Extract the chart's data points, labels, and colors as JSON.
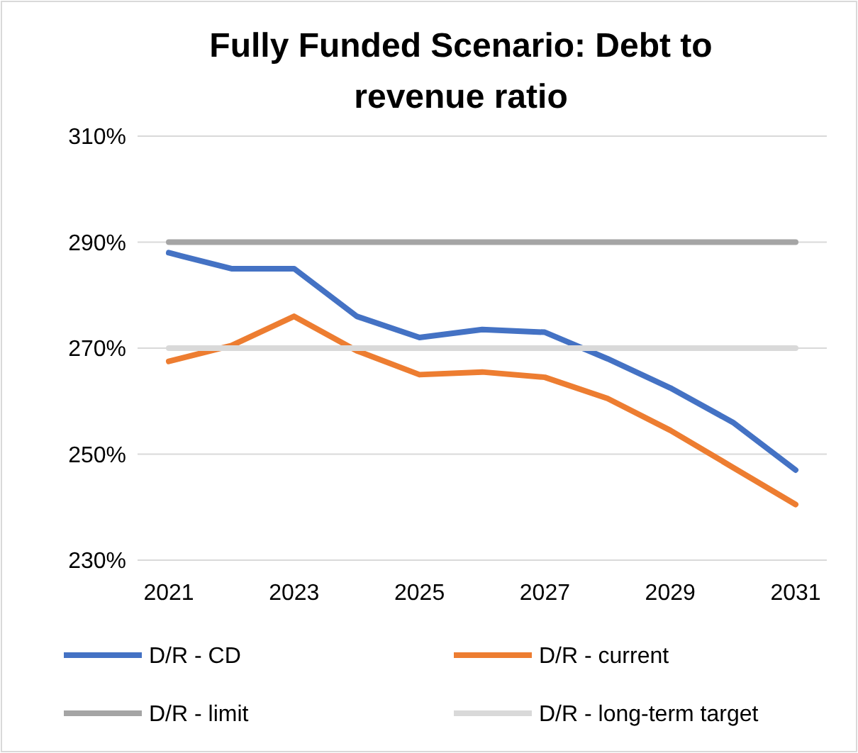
{
  "chart_data": {
    "type": "line",
    "title": "Fully Funded Scenario: Debt to revenue ratio",
    "categories": [
      "2021",
      null,
      "2023",
      null,
      "2025",
      null,
      "2027",
      null,
      "2029",
      null,
      "2031"
    ],
    "series": [
      {
        "name": "D/R - CD",
        "color": "#4472c4",
        "values": [
          288,
          285,
          285,
          276,
          272,
          273.5,
          273,
          268,
          262.5,
          256,
          247
        ]
      },
      {
        "name": "D/R - current",
        "color": "#ed7d31",
        "values": [
          267.5,
          270.5,
          276,
          269.5,
          265,
          265.5,
          264.5,
          260.5,
          254.5,
          247.5,
          240.5
        ]
      },
      {
        "name": "D/R - limit",
        "color": "#a5a5a5",
        "values": [
          290,
          290,
          290,
          290,
          290,
          290,
          290,
          290,
          290,
          290,
          290
        ]
      },
      {
        "name": "D/R - long-term target",
        "color": "#d9d9d9",
        "values": [
          270,
          270,
          270,
          270,
          270,
          270,
          270,
          270,
          270,
          270,
          270
        ]
      }
    ],
    "ylim": [
      230,
      310
    ],
    "yticks": [
      {
        "value": 230,
        "label": "230%"
      },
      {
        "value": 250,
        "label": "250%"
      },
      {
        "value": 270,
        "label": "270%"
      },
      {
        "value": 290,
        "label": "290%"
      },
      {
        "value": 310,
        "label": "310%"
      }
    ],
    "grid": "y",
    "legend": "bottom",
    "marker": "none",
    "line_style": "solid"
  }
}
